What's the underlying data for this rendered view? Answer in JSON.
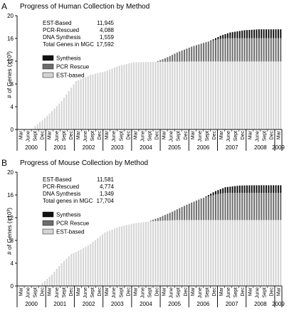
{
  "colors": {
    "synthesis": "#111111",
    "pcr": "#6e6e6e",
    "est": "#d4d4d4",
    "axis": "#111111"
  },
  "chart_data": [
    {
      "panel_label": "A",
      "type": "bar",
      "stacked": true,
      "title": "Progress of Human Collection by Method",
      "ylabel": "# of Genes (x10³)",
      "xlabel": "",
      "ylim": [
        0,
        20
      ],
      "yticks": [
        0,
        4,
        8,
        12,
        16,
        20
      ],
      "grid": false,
      "legend_position": "top-left",
      "stats": [
        {
          "label": "EST-Based",
          "value": "11,945"
        },
        {
          "label": "PCR-Rescued",
          "value": "4,088"
        },
        {
          "label": "DNA Synthesis",
          "value": "1,559"
        },
        {
          "label": "Total Genes in MGC",
          "value": "17,592"
        }
      ],
      "legend": [
        {
          "key": "synthesis",
          "label": "Synthesis"
        },
        {
          "key": "pcr",
          "label": "PCR Rescue"
        },
        {
          "key": "est",
          "label": "EST-based"
        }
      ],
      "x_month_labels": [
        "Mar",
        "June",
        "Sept",
        "Dec",
        "Mar",
        "June",
        "Sept",
        "Dec",
        "Mar",
        "June",
        "Sept",
        "Dec",
        "Mar",
        "June",
        "Sept",
        "Dec",
        "Mar",
        "June",
        "Sept",
        "Dec",
        "Mar",
        "June",
        "Sept",
        "Dec",
        "Mar",
        "June",
        "Sept",
        "Dec",
        "Mar",
        "June",
        "Sept",
        "Dec",
        "Mar",
        "June",
        "Sept",
        "Dec",
        "Mar"
      ],
      "x_years": [
        "2000",
        "2001",
        "2002",
        "2003",
        "2004",
        "2005",
        "2006",
        "2007",
        "2008",
        "2009"
      ],
      "series": [
        {
          "key": "est",
          "name": "EST-based",
          "anchors": [
            [
              0,
              0
            ],
            [
              6,
              0
            ],
            [
              7,
              0.6
            ],
            [
              10,
              1.6
            ],
            [
              14,
              3.2
            ],
            [
              18,
              5.0
            ],
            [
              24,
              8.5
            ],
            [
              30,
              9.6
            ],
            [
              36,
              10.2
            ],
            [
              42,
              11.2
            ],
            [
              48,
              11.8
            ],
            [
              60,
              11.9
            ],
            [
              72,
              11.95
            ],
            [
              84,
              11.95
            ],
            [
              110,
              11.95
            ]
          ]
        },
        {
          "key": "pcr",
          "name": "PCR Rescue",
          "anchors": [
            [
              0,
              0
            ],
            [
              57,
              0
            ],
            [
              61,
              0.6
            ],
            [
              66,
              1.6
            ],
            [
              72,
              2.6
            ],
            [
              78,
              3.4
            ],
            [
              84,
              4.0
            ],
            [
              88,
              4.09
            ],
            [
              110,
              4.09
            ]
          ]
        },
        {
          "key": "synthesis",
          "name": "Synthesis",
          "anchors": [
            [
              0,
              0
            ],
            [
              79,
              0
            ],
            [
              83,
              0.4
            ],
            [
              88,
              1.0
            ],
            [
              94,
              1.4
            ],
            [
              100,
              1.56
            ],
            [
              110,
              1.56
            ]
          ]
        }
      ]
    },
    {
      "panel_label": "B",
      "type": "bar",
      "stacked": true,
      "title": "Progress of Mouse Collection by Method",
      "ylabel": "# of Genes (x10³)",
      "xlabel": "",
      "ylim": [
        0,
        20
      ],
      "yticks": [
        0,
        4,
        8,
        12,
        16,
        20
      ],
      "grid": false,
      "legend_position": "top-left",
      "stats": [
        {
          "label": "EST-Based",
          "value": "11,581"
        },
        {
          "label": "PCR-Rescued",
          "value": "4,774"
        },
        {
          "label": "DNA Synthesis",
          "value": "1,349"
        },
        {
          "label": "Total genes in MGC",
          "value": "17,704"
        }
      ],
      "legend": [
        {
          "key": "synthesis",
          "label": "Synthesis"
        },
        {
          "key": "pcr",
          "label": "PCR Rescue"
        },
        {
          "key": "est",
          "label": "EST-based"
        }
      ],
      "x_month_labels": [
        "Mar",
        "June",
        "Sept",
        "Dec",
        "Mar",
        "June",
        "Sept",
        "Dec",
        "Mar",
        "June",
        "Sept",
        "Dec",
        "Mar",
        "June",
        "Sept",
        "Dec",
        "Mar",
        "June",
        "Sept",
        "Dec",
        "Mar",
        "June",
        "Sept",
        "Dec",
        "Mar",
        "June",
        "Sept",
        "Dec",
        "Mar",
        "June",
        "Sept",
        "Dec",
        "Mar",
        "June",
        "Sept",
        "Dec",
        "Mar"
      ],
      "x_years": [
        "2000",
        "2001",
        "2002",
        "2003",
        "2004",
        "2005",
        "2006",
        "2007",
        "2008",
        "2009"
      ],
      "series": [
        {
          "key": "est",
          "name": "EST-based",
          "anchors": [
            [
              0,
              0
            ],
            [
              9,
              0
            ],
            [
              10,
              0.5
            ],
            [
              14,
              2.0
            ],
            [
              18,
              4.0
            ],
            [
              22,
              5.6
            ],
            [
              26,
              6.4
            ],
            [
              30,
              7.4
            ],
            [
              36,
              9.4
            ],
            [
              42,
              10.4
            ],
            [
              48,
              11.0
            ],
            [
              56,
              11.4
            ],
            [
              66,
              11.58
            ],
            [
              110,
              11.58
            ]
          ]
        },
        {
          "key": "pcr",
          "name": "PCR Rescue",
          "anchors": [
            [
              0,
              0
            ],
            [
              54,
              0
            ],
            [
              58,
              0.5
            ],
            [
              64,
              1.5
            ],
            [
              70,
              2.7
            ],
            [
              76,
              3.8
            ],
            [
              82,
              4.5
            ],
            [
              86,
              4.77
            ],
            [
              110,
              4.77
            ]
          ]
        },
        {
          "key": "synthesis",
          "name": "Synthesis",
          "anchors": [
            [
              0,
              0
            ],
            [
              77,
              0
            ],
            [
              81,
              0.5
            ],
            [
              86,
              1.0
            ],
            [
              92,
              1.3
            ],
            [
              98,
              1.35
            ],
            [
              110,
              1.35
            ]
          ]
        }
      ]
    }
  ]
}
